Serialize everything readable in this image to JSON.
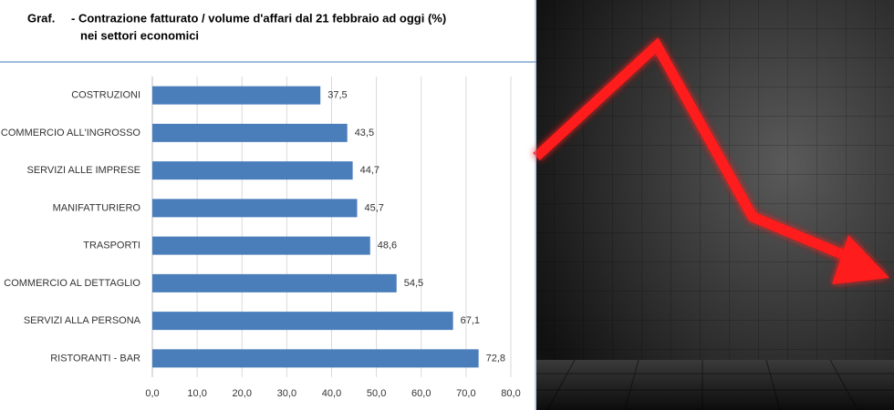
{
  "chart_data": {
    "type": "bar",
    "orientation": "horizontal",
    "title": [
      "Graf.",
      "- Contrazione fatturato / volume d'affari dal 21 febbraio ad oggi (%)",
      "nei settori economici"
    ],
    "categories": [
      "COSTRUZIONI",
      "COMMERCIO ALL'INGROSSO",
      "SERVIZI ALLE IMPRESE",
      "MANIFATTURIERO",
      "TRASPORTI",
      "COMMERCIO AL DETTAGLIO",
      "SERVIZI ALLA PERSONA",
      "RISTORANTI - BAR"
    ],
    "values": [
      37.5,
      43.5,
      44.7,
      45.7,
      48.6,
      54.5,
      67.1,
      72.8
    ],
    "value_labels": [
      "37,5",
      "43,5",
      "44,7",
      "45,7",
      "48,6",
      "54,5",
      "67,1",
      "72,8"
    ],
    "color": "#4a7ebb",
    "xlim": [
      0,
      80
    ],
    "xticks": [
      {
        "value": 0,
        "label": "0,0"
      },
      {
        "value": 10,
        "label": "10,0"
      },
      {
        "value": 20,
        "label": "20,0"
      },
      {
        "value": 30,
        "label": "30,0"
      },
      {
        "value": 40,
        "label": "40,0"
      },
      {
        "value": 50,
        "label": "50,0"
      },
      {
        "value": 60,
        "label": "60,0"
      },
      {
        "value": 70,
        "label": "70,0"
      },
      {
        "value": 80,
        "label": "80,0"
      }
    ],
    "grid": true
  }
}
